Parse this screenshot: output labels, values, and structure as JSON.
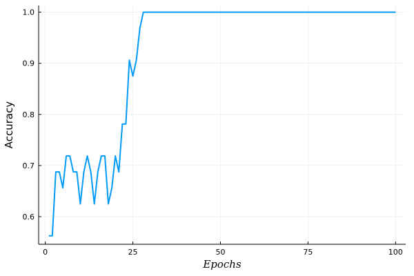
{
  "chart_data": {
    "type": "line",
    "title": "",
    "xlabel": "Epochs",
    "ylabel": "Accuracy",
    "xlim": [
      0,
      100
    ],
    "ylim": [
      0.55,
      1.0
    ],
    "xticks": [
      0,
      25,
      50,
      75,
      100
    ],
    "yticks": [
      0.6,
      0.7,
      0.8,
      0.9,
      1.0
    ],
    "xtick_labels": [
      "0",
      "25",
      "50",
      "75",
      "100"
    ],
    "ytick_labels": [
      "0.6",
      "0.7",
      "0.8",
      "0.9",
      "1.0"
    ],
    "grid": true,
    "legend": "none",
    "series": [
      {
        "color": "#009AFA",
        "x": [
          1,
          2,
          3,
          4,
          5,
          6,
          7,
          8,
          9,
          10,
          11,
          12,
          13,
          14,
          15,
          16,
          17,
          18,
          19,
          20,
          21,
          22,
          23,
          24,
          25,
          26,
          27,
          28,
          29,
          30,
          40,
          50,
          60,
          70,
          80,
          90,
          100
        ],
        "y": [
          0.5625,
          0.5625,
          0.6875,
          0.6875,
          0.65625,
          0.71875,
          0.71875,
          0.6875,
          0.6875,
          0.625,
          0.6875,
          0.71875,
          0.6875,
          0.625,
          0.6875,
          0.71875,
          0.71875,
          0.625,
          0.65625,
          0.71875,
          0.6875,
          0.78125,
          0.78125,
          0.90625,
          0.875,
          0.90625,
          0.96875,
          1.0,
          1.0,
          1.0,
          1.0,
          1.0,
          1.0,
          1.0,
          1.0,
          1.0,
          1.0
        ]
      }
    ]
  }
}
